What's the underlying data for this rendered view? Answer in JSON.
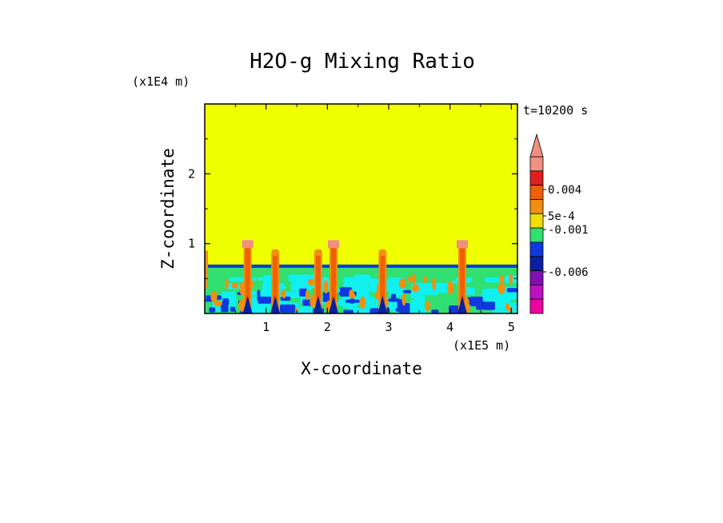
{
  "chart_data": {
    "type": "heatmap",
    "title": "H2O-g Mixing Ratio",
    "xlabel": "X-coordinate",
    "ylabel": "Z-coordinate",
    "x_unit": "(x1E5 m)",
    "y_unit": "(x1E4 m)",
    "time_label": "t=10200 s",
    "xlim": [
      0,
      5.1
    ],
    "ylim": [
      0,
      3.0
    ],
    "x_ticks": [
      "1",
      "2",
      "3",
      "4",
      "5"
    ],
    "y_ticks": [
      "1",
      "2"
    ],
    "background_value": "yellow band (~0)",
    "boundary_layer_top": 0.7,
    "plume_columns_x": [
      0.7,
      1.15,
      1.85,
      2.1,
      2.9,
      4.2
    ],
    "colorbar": {
      "extend_max": true,
      "labels": [
        "0.004",
        "5e-4",
        "-0.001",
        "-0.006"
      ],
      "colors": [
        "#f09080",
        "#e02020",
        "#f06000",
        "#f09010",
        "#f0e000",
        "#30e070",
        "#1038e0",
        "#0820a0",
        "#8010b0",
        "#c010c0",
        "#f000a0"
      ]
    }
  }
}
